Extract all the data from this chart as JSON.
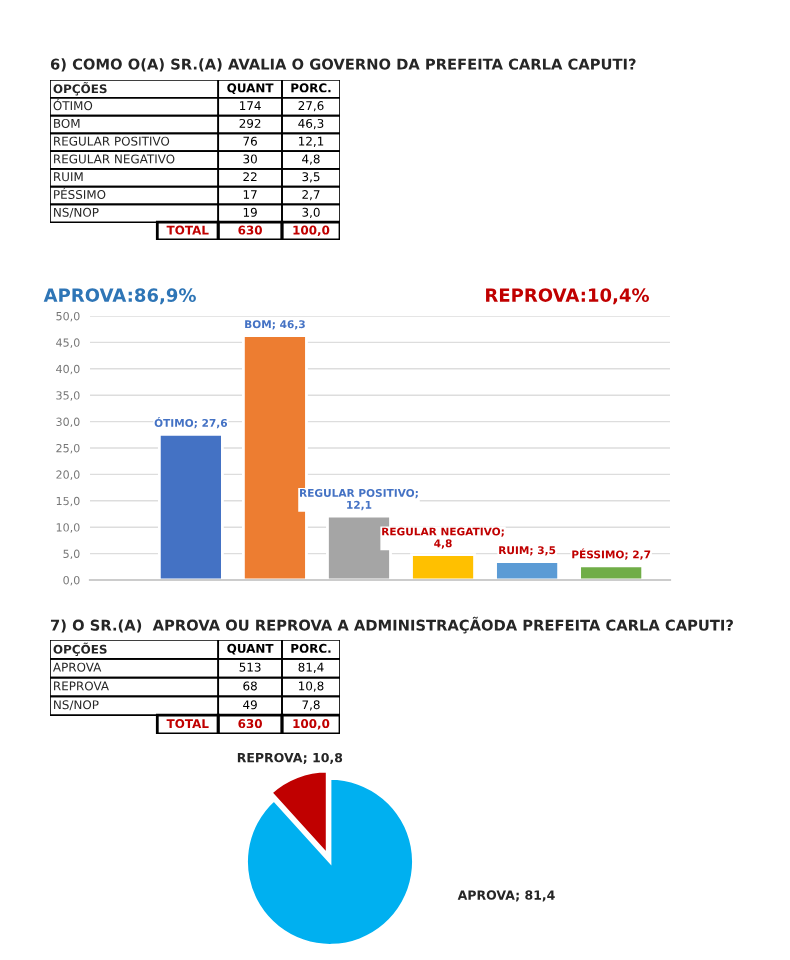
{
  "chart_data": [
    {
      "type": "other",
      "title": "6) COMO O(A) SR.(A) AVALIA O GOVERNO DA PREFEITA CARLA CAPUTI?",
      "annotations": [
        "OPÇÕES",
        "QUANT",
        "PORC.",
        "ÓTIMO",
        "174",
        "27,6",
        "BOM",
        "292",
        "46,3",
        "REGULAR POSITIVO",
        "76",
        "12,1",
        "REGULAR NEGATIVO",
        "30",
        "4,8",
        "RUIM",
        "22",
        "3,5",
        "PÉSSIMO",
        "17",
        "2,7",
        "NS/NOP",
        "19",
        "3,0",
        "TOTAL",
        "630",
        "100,0"
      ]
    },
    {
      "type": "bar",
      "categories": [
        null,
        null,
        null,
        null,
        null,
        null
      ],
      "values": [
        27.6,
        46.3,
        12.1,
        4.8,
        3.5,
        2.7
      ],
      "colors": [
        "#4472c4",
        "#ed7d31",
        "#a5a5a5",
        "#ffc000",
        "#5b9bd5",
        "#70ad47"
      ],
      "value_labels": [
        "ÓTIMO; 27,6",
        "BOM; 46,3",
        "REGULAR POSITIVO;\n12,1",
        "REGULAR NEGATIVO;\n4,8",
        "RUIM; 3,5",
        "PÉSSIMO; 2,7"
      ],
      "ylim": [
        0,
        50
      ],
      "yticks": [
        {
          "value": 0,
          "label": "0,0"
        },
        {
          "value": 5,
          "label": "5,0"
        },
        {
          "value": 10,
          "label": "10,0"
        },
        {
          "value": 15,
          "label": "15,0"
        },
        {
          "value": 20,
          "label": "20,0"
        },
        {
          "value": 25,
          "label": "25,0"
        },
        {
          "value": 30,
          "label": "30,0"
        },
        {
          "value": 35,
          "label": "35,0"
        },
        {
          "value": 40,
          "label": "40,0"
        },
        {
          "value": 45,
          "label": "45,0"
        },
        {
          "value": 50,
          "label": "50,0"
        }
      ],
      "grid": "y",
      "annotations": [
        "APROVA:86,9%",
        "REPROVA:10,4%"
      ]
    },
    {
      "type": "other",
      "title": "7) O SR.(A)  APROVA OU REPROVA A ADMINISTRAÇÃODA PREFEITA CARLA CAPUTI?",
      "annotations": [
        "OPÇÕES",
        "QUANT",
        "PORC.",
        "APROVA",
        "513",
        "81,4",
        "REPROVA",
        "68",
        "10,8",
        "NS/NOP",
        "49",
        "7,8",
        "TOTAL",
        "630",
        "100,0"
      ]
    },
    {
      "type": "pie",
      "categories": [
        null,
        null
      ],
      "values": [
        10.8,
        81.4
      ],
      "colors": [
        "#c00000",
        "#00b0f0"
      ],
      "value_labels": [
        "REPROVA; 10,8",
        "APROVA; 81,4"
      ]
    }
  ]
}
